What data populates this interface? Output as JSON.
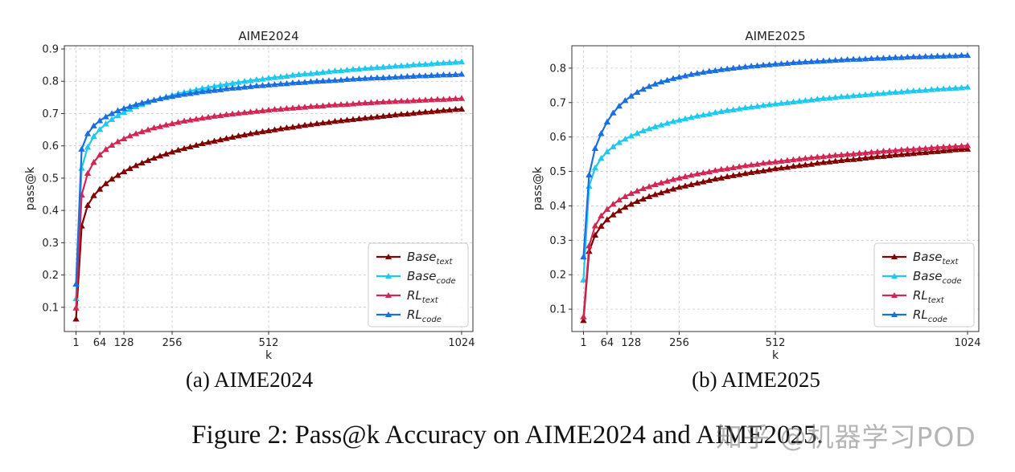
{
  "captions": {
    "left": "(a)  AIME2024",
    "right": "(b)  AIME2025",
    "figure": "Figure 2: Pass@k Accuracy on AIME2024 and AIME2025."
  },
  "watermark": "知乎 @机器学习POD",
  "colors": {
    "base_text": "#800000",
    "base_code": "#1ec8ee",
    "rl_text": "#d22654",
    "rl_code": "#1a6fe0"
  },
  "chart_data": [
    {
      "type": "line",
      "title": "AIME2024",
      "xlabel": "k",
      "ylabel": "pass@k",
      "xlim": [
        -30,
        1054
      ],
      "ylim": [
        0.025,
        0.91
      ],
      "xticks": [
        1,
        64,
        128,
        256,
        512,
        1024
      ],
      "yticks": [
        0.1,
        0.2,
        0.3,
        0.4,
        0.5,
        0.6,
        0.7,
        0.8,
        0.9
      ],
      "grid": true,
      "legend_position": "lower-right",
      "legend": [
        {
          "base": "Base",
          "sub": "text",
          "color_key": "base_text"
        },
        {
          "base": "Base",
          "sub": "code",
          "color_key": "base_code"
        },
        {
          "base": "RL",
          "sub": "text",
          "color_key": "rl_text"
        },
        {
          "base": "RL",
          "sub": "code",
          "color_key": "rl_code"
        }
      ],
      "x": [
        1,
        16,
        32,
        48,
        64,
        80,
        96,
        112,
        128,
        144,
        160,
        176,
        192,
        208,
        224,
        240,
        256,
        272,
        288,
        304,
        320,
        336,
        352,
        368,
        384,
        400,
        416,
        432,
        448,
        464,
        480,
        496,
        512,
        528,
        544,
        560,
        576,
        592,
        608,
        624,
        640,
        656,
        672,
        688,
        704,
        720,
        736,
        752,
        768,
        784,
        800,
        816,
        832,
        848,
        864,
        880,
        896,
        912,
        928,
        944,
        960,
        976,
        992,
        1008,
        1024
      ],
      "series": [
        {
          "name": "Base_text",
          "color_key": "base_text",
          "values": [
            0.064,
            0.352,
            0.416,
            0.446,
            0.466,
            0.483,
            0.497,
            0.509,
            0.52,
            0.53,
            0.539,
            0.547,
            0.555,
            0.562,
            0.569,
            0.575,
            0.581,
            0.587,
            0.592,
            0.597,
            0.602,
            0.607,
            0.611,
            0.615,
            0.619,
            0.623,
            0.627,
            0.631,
            0.634,
            0.638,
            0.641,
            0.644,
            0.647,
            0.65,
            0.653,
            0.656,
            0.658,
            0.661,
            0.664,
            0.666,
            0.669,
            0.671,
            0.673,
            0.676,
            0.678,
            0.68,
            0.682,
            0.684,
            0.686,
            0.688,
            0.69,
            0.692,
            0.694,
            0.696,
            0.698,
            0.699,
            0.701,
            0.703,
            0.705,
            0.706,
            0.708,
            0.71,
            0.711,
            0.713,
            0.714
          ]
        },
        {
          "name": "Base_code",
          "color_key": "base_code",
          "values": [
            0.127,
            0.531,
            0.596,
            0.629,
            0.651,
            0.668,
            0.682,
            0.694,
            0.704,
            0.713,
            0.721,
            0.728,
            0.735,
            0.741,
            0.747,
            0.752,
            0.757,
            0.762,
            0.766,
            0.77,
            0.774,
            0.778,
            0.781,
            0.785,
            0.788,
            0.791,
            0.794,
            0.797,
            0.8,
            0.802,
            0.805,
            0.807,
            0.81,
            0.812,
            0.814,
            0.816,
            0.819,
            0.821,
            0.823,
            0.824,
            0.826,
            0.828,
            0.83,
            0.832,
            0.833,
            0.835,
            0.837,
            0.838,
            0.84,
            0.841,
            0.843,
            0.844,
            0.845,
            0.847,
            0.848,
            0.849,
            0.851,
            0.852,
            0.853,
            0.854,
            0.856,
            0.857,
            0.858,
            0.859,
            0.86
          ]
        },
        {
          "name": "RL_text",
          "color_key": "rl_text",
          "values": [
            0.098,
            0.448,
            0.515,
            0.549,
            0.572,
            0.589,
            0.602,
            0.613,
            0.622,
            0.631,
            0.638,
            0.644,
            0.65,
            0.656,
            0.66,
            0.665,
            0.669,
            0.673,
            0.677,
            0.68,
            0.683,
            0.686,
            0.689,
            0.692,
            0.694,
            0.697,
            0.699,
            0.701,
            0.703,
            0.705,
            0.707,
            0.709,
            0.711,
            0.713,
            0.714,
            0.716,
            0.717,
            0.719,
            0.72,
            0.722,
            0.723,
            0.724,
            0.726,
            0.727,
            0.728,
            0.729,
            0.73,
            0.732,
            0.733,
            0.734,
            0.735,
            0.736,
            0.737,
            0.738,
            0.739,
            0.739,
            0.74,
            0.741,
            0.742,
            0.743,
            0.744,
            0.744,
            0.745,
            0.746,
            0.747
          ]
        },
        {
          "name": "RL_code",
          "color_key": "rl_code",
          "values": [
            0.172,
            0.59,
            0.638,
            0.662,
            0.678,
            0.69,
            0.7,
            0.709,
            0.716,
            0.722,
            0.728,
            0.733,
            0.738,
            0.742,
            0.746,
            0.75,
            0.753,
            0.757,
            0.76,
            0.762,
            0.765,
            0.768,
            0.77,
            0.772,
            0.774,
            0.777,
            0.779,
            0.78,
            0.782,
            0.784,
            0.786,
            0.787,
            0.789,
            0.79,
            0.792,
            0.793,
            0.795,
            0.796,
            0.797,
            0.799,
            0.8,
            0.801,
            0.802,
            0.803,
            0.804,
            0.806,
            0.807,
            0.808,
            0.809,
            0.81,
            0.811,
            0.811,
            0.812,
            0.813,
            0.814,
            0.815,
            0.816,
            0.817,
            0.817,
            0.818,
            0.819,
            0.82,
            0.82,
            0.821,
            0.822
          ]
        }
      ]
    },
    {
      "type": "line",
      "title": "AIME2025",
      "xlabel": "k",
      "ylabel": "pass@k",
      "xlim": [
        -30,
        1054
      ],
      "ylim": [
        0.035,
        0.865
      ],
      "xticks": [
        1,
        64,
        128,
        256,
        512,
        1024
      ],
      "yticks": [
        0.1,
        0.2,
        0.3,
        0.4,
        0.5,
        0.6,
        0.7,
        0.8
      ],
      "grid": true,
      "legend_position": "lower-right",
      "legend": [
        {
          "base": "Base",
          "sub": "text",
          "color_key": "base_text"
        },
        {
          "base": "Base",
          "sub": "code",
          "color_key": "base_code"
        },
        {
          "base": "RL",
          "sub": "text",
          "color_key": "rl_text"
        },
        {
          "base": "RL",
          "sub": "code",
          "color_key": "rl_code"
        }
      ],
      "x": [
        1,
        16,
        32,
        48,
        64,
        80,
        96,
        112,
        128,
        144,
        160,
        176,
        192,
        208,
        224,
        240,
        256,
        272,
        288,
        304,
        320,
        336,
        352,
        368,
        384,
        400,
        416,
        432,
        448,
        464,
        480,
        496,
        512,
        528,
        544,
        560,
        576,
        592,
        608,
        624,
        640,
        656,
        672,
        688,
        704,
        720,
        736,
        752,
        768,
        784,
        800,
        816,
        832,
        848,
        864,
        880,
        896,
        912,
        928,
        944,
        960,
        976,
        992,
        1008,
        1024
      ],
      "series": [
        {
          "name": "Base_text",
          "color_key": "base_text",
          "values": [
            0.067,
            0.268,
            0.315,
            0.341,
            0.36,
            0.374,
            0.386,
            0.396,
            0.405,
            0.413,
            0.42,
            0.427,
            0.433,
            0.438,
            0.444,
            0.449,
            0.454,
            0.458,
            0.462,
            0.466,
            0.47,
            0.474,
            0.478,
            0.481,
            0.485,
            0.488,
            0.491,
            0.494,
            0.497,
            0.5,
            0.502,
            0.505,
            0.508,
            0.51,
            0.512,
            0.515,
            0.517,
            0.519,
            0.521,
            0.524,
            0.526,
            0.528,
            0.53,
            0.532,
            0.534,
            0.535,
            0.537,
            0.539,
            0.541,
            0.543,
            0.544,
            0.546,
            0.548,
            0.549,
            0.551,
            0.552,
            0.554,
            0.555,
            0.557,
            0.558,
            0.56,
            0.561,
            0.563,
            0.564,
            0.565
          ]
        },
        {
          "name": "Base_code",
          "color_key": "base_code",
          "values": [
            0.185,
            0.457,
            0.51,
            0.538,
            0.557,
            0.572,
            0.584,
            0.594,
            0.603,
            0.611,
            0.618,
            0.624,
            0.63,
            0.635,
            0.64,
            0.645,
            0.649,
            0.653,
            0.657,
            0.661,
            0.664,
            0.667,
            0.671,
            0.674,
            0.677,
            0.679,
            0.682,
            0.685,
            0.687,
            0.689,
            0.692,
            0.694,
            0.696,
            0.698,
            0.7,
            0.702,
            0.704,
            0.706,
            0.708,
            0.71,
            0.712,
            0.713,
            0.715,
            0.717,
            0.718,
            0.72,
            0.721,
            0.723,
            0.724,
            0.726,
            0.727,
            0.729,
            0.73,
            0.731,
            0.733,
            0.734,
            0.735,
            0.736,
            0.738,
            0.739,
            0.74,
            0.741,
            0.742,
            0.743,
            0.745
          ]
        },
        {
          "name": "RL_text",
          "color_key": "rl_text",
          "values": [
            0.078,
            0.284,
            0.342,
            0.371,
            0.39,
            0.405,
            0.417,
            0.427,
            0.436,
            0.443,
            0.45,
            0.456,
            0.462,
            0.467,
            0.472,
            0.477,
            0.481,
            0.485,
            0.489,
            0.493,
            0.496,
            0.499,
            0.503,
            0.506,
            0.508,
            0.511,
            0.514,
            0.517,
            0.519,
            0.521,
            0.524,
            0.526,
            0.528,
            0.53,
            0.532,
            0.534,
            0.536,
            0.538,
            0.54,
            0.542,
            0.543,
            0.545,
            0.547,
            0.548,
            0.55,
            0.551,
            0.553,
            0.554,
            0.556,
            0.557,
            0.559,
            0.56,
            0.561,
            0.563,
            0.564,
            0.565,
            0.566,
            0.567,
            0.569,
            0.57,
            0.571,
            0.572,
            0.573,
            0.574,
            0.575
          ]
        },
        {
          "name": "RL_code",
          "color_key": "rl_code",
          "values": [
            0.252,
            0.49,
            0.567,
            0.61,
            0.644,
            0.67,
            0.69,
            0.706,
            0.719,
            0.73,
            0.739,
            0.747,
            0.754,
            0.76,
            0.765,
            0.77,
            0.774,
            0.778,
            0.782,
            0.785,
            0.788,
            0.791,
            0.793,
            0.796,
            0.798,
            0.8,
            0.802,
            0.804,
            0.806,
            0.807,
            0.809,
            0.81,
            0.812,
            0.813,
            0.814,
            0.816,
            0.817,
            0.818,
            0.819,
            0.82,
            0.821,
            0.822,
            0.823,
            0.824,
            0.825,
            0.826,
            0.826,
            0.827,
            0.828,
            0.829,
            0.829,
            0.83,
            0.831,
            0.831,
            0.832,
            0.833,
            0.833,
            0.834,
            0.834,
            0.835,
            0.835,
            0.836,
            0.836,
            0.837,
            0.837
          ]
        }
      ]
    }
  ]
}
